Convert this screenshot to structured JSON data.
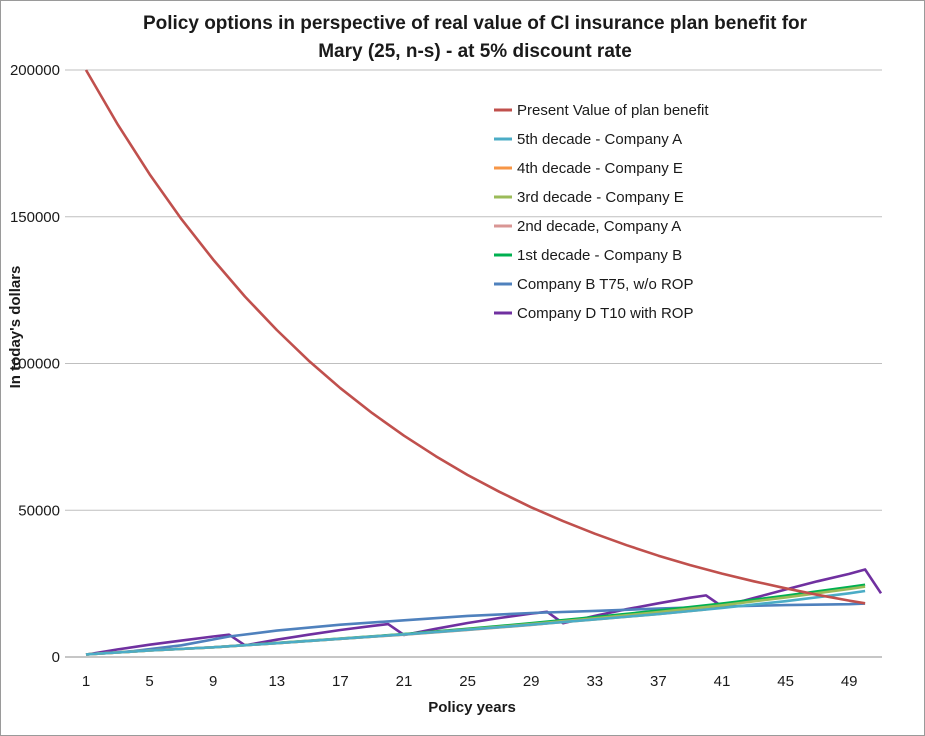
{
  "chart_data": {
    "type": "line",
    "title_line1": "Policy options in perspective of real value of CI insurance plan benefit for",
    "title_line2": "Mary (25, n-s) - at 5% discount rate",
    "xlabel": "Policy years",
    "ylabel": "In today's dollars",
    "x_ticks": [
      "1",
      "5",
      "9",
      "13",
      "17",
      "21",
      "25",
      "29",
      "33",
      "37",
      "41",
      "45",
      "49"
    ],
    "y_ticks": [
      "0",
      "50000",
      "100000",
      "150000",
      "200000"
    ],
    "xlim": [
      1,
      51
    ],
    "ylim": [
      0,
      200000
    ],
    "grid": "horizontal",
    "legend_position": "top-right",
    "series": [
      {
        "name": "Present Value of plan benefit",
        "color": "#c0504d",
        "points": [
          [
            1,
            200000
          ],
          [
            3,
            181400
          ],
          [
            5,
            164500
          ],
          [
            7,
            149200
          ],
          [
            9,
            135400
          ],
          [
            11,
            122800
          ],
          [
            13,
            111400
          ],
          [
            15,
            101000
          ],
          [
            17,
            91600
          ],
          [
            19,
            83100
          ],
          [
            21,
            75400
          ],
          [
            23,
            68400
          ],
          [
            25,
            62000
          ],
          [
            27,
            56300
          ],
          [
            29,
            51000
          ],
          [
            31,
            46300
          ],
          [
            33,
            42000
          ],
          [
            35,
            38100
          ],
          [
            37,
            34500
          ],
          [
            39,
            31300
          ],
          [
            41,
            28400
          ],
          [
            43,
            25800
          ],
          [
            45,
            23400
          ],
          [
            47,
            21200
          ],
          [
            49,
            19200
          ],
          [
            50,
            18300
          ]
        ]
      },
      {
        "name": "5th decade - Company A",
        "color": "#4bacc6",
        "points": [
          [
            1,
            900
          ],
          [
            5,
            2200
          ],
          [
            9,
            3300
          ],
          [
            13,
            4700
          ],
          [
            17,
            6200
          ],
          [
            21,
            7700
          ],
          [
            25,
            9300
          ],
          [
            29,
            11000
          ],
          [
            33,
            12800
          ],
          [
            37,
            14600
          ],
          [
            41,
            16700
          ],
          [
            45,
            19000
          ],
          [
            49,
            21700
          ],
          [
            50,
            22500
          ]
        ]
      },
      {
        "name": "4th decade - Company E",
        "color": "#f79646",
        "points": [
          [
            1,
            900
          ],
          [
            5,
            2200
          ],
          [
            9,
            3300
          ],
          [
            13,
            4700
          ],
          [
            17,
            6200
          ],
          [
            21,
            7700
          ],
          [
            25,
            9300
          ],
          [
            29,
            11000
          ],
          [
            33,
            12800
          ],
          [
            37,
            14600
          ],
          [
            40,
            16200
          ]
        ]
      },
      {
        "name": "3rd decade - Company E",
        "color": "#9bbb59",
        "points": [
          [
            1,
            900
          ],
          [
            5,
            2200
          ],
          [
            9,
            3300
          ],
          [
            13,
            4700
          ],
          [
            17,
            6200
          ],
          [
            21,
            7700
          ],
          [
            25,
            9400
          ],
          [
            29,
            11200
          ],
          [
            33,
            13200
          ],
          [
            37,
            15300
          ],
          [
            41,
            17600
          ],
          [
            45,
            20300
          ],
          [
            49,
            23200
          ],
          [
            50,
            24000
          ]
        ]
      },
      {
        "name": "2nd decade, Company A",
        "color": "#d99694",
        "points": [
          [
            1,
            900
          ],
          [
            5,
            2200
          ],
          [
            9,
            3300
          ],
          [
            13,
            4700
          ],
          [
            17,
            6200
          ],
          [
            21,
            7600
          ],
          [
            25,
            9200
          ],
          [
            29,
            10900
          ],
          [
            30,
            11400
          ]
        ]
      },
      {
        "name": "1st decade - Company B",
        "color": "#00b050",
        "points": [
          [
            1,
            900
          ],
          [
            5,
            2200
          ],
          [
            9,
            3300
          ],
          [
            13,
            4800
          ],
          [
            17,
            6300
          ],
          [
            21,
            7800
          ],
          [
            25,
            9600
          ],
          [
            29,
            11500
          ],
          [
            33,
            13600
          ],
          [
            37,
            15800
          ],
          [
            41,
            18200
          ],
          [
            45,
            20900
          ],
          [
            49,
            23800
          ],
          [
            50,
            24600
          ]
        ]
      },
      {
        "name": "Company B T75, w/o ROP",
        "color": "#4f81bd",
        "points": [
          [
            1,
            900
          ],
          [
            4,
            2000
          ],
          [
            7,
            4000
          ],
          [
            10,
            7000
          ],
          [
            13,
            9000
          ],
          [
            17,
            11000
          ],
          [
            21,
            12500
          ],
          [
            25,
            14000
          ],
          [
            29,
            15000
          ],
          [
            33,
            15700
          ],
          [
            37,
            16500
          ],
          [
            41,
            17200
          ],
          [
            45,
            17700
          ],
          [
            49,
            18000
          ],
          [
            50,
            18200
          ]
        ]
      },
      {
        "name": "Company D T10 with ROP",
        "color": "#7030a0",
        "points": [
          [
            1,
            800
          ],
          [
            3,
            2600
          ],
          [
            5,
            4200
          ],
          [
            7,
            5600
          ],
          [
            9,
            7000
          ],
          [
            10,
            7600
          ],
          [
            11,
            4000
          ],
          [
            13,
            5900
          ],
          [
            15,
            7600
          ],
          [
            17,
            9200
          ],
          [
            19,
            10600
          ],
          [
            20,
            11200
          ],
          [
            21,
            7500
          ],
          [
            23,
            9600
          ],
          [
            25,
            11600
          ],
          [
            27,
            13300
          ],
          [
            29,
            14800
          ],
          [
            30,
            15400
          ],
          [
            31,
            11500
          ],
          [
            33,
            14000
          ],
          [
            35,
            16300
          ],
          [
            37,
            18300
          ],
          [
            39,
            20200
          ],
          [
            40,
            21000
          ],
          [
            41,
            17200
          ],
          [
            43,
            20100
          ],
          [
            45,
            23000
          ],
          [
            47,
            25800
          ],
          [
            49,
            28300
          ],
          [
            50,
            29800
          ],
          [
            51,
            21700
          ]
        ]
      }
    ]
  }
}
